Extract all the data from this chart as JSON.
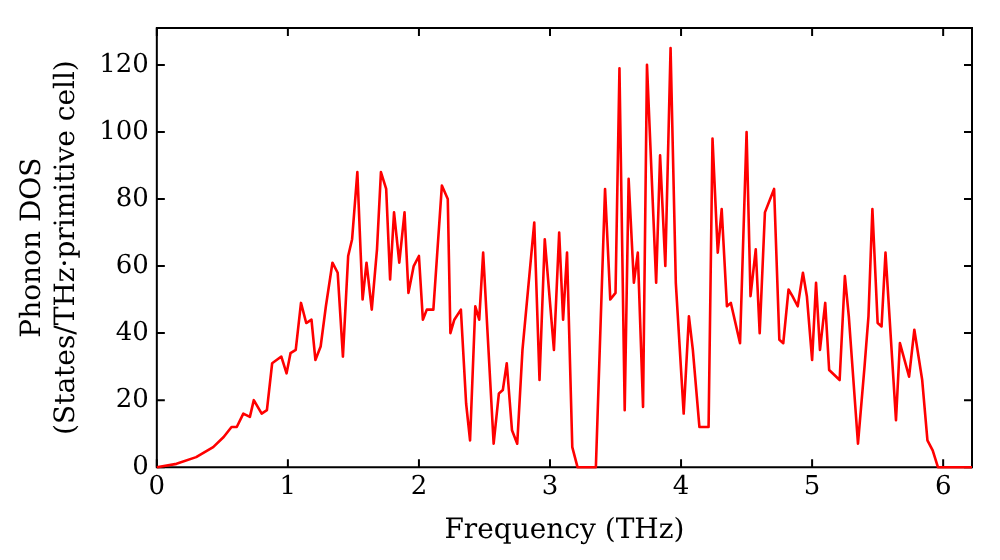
{
  "chart_data": {
    "type": "line",
    "xlabel": "Frequency (THz)",
    "ylabel": "Phonon DOS\n(States/THz·primitive cell)",
    "xlim": [
      0,
      6.22
    ],
    "ylim": [
      0,
      131
    ],
    "xticks": [
      0,
      1,
      2,
      3,
      4,
      5,
      6
    ],
    "yticks": [
      0,
      20,
      40,
      60,
      80,
      100,
      120
    ],
    "grid": false,
    "legend": false,
    "marker": "none",
    "line_style": "solid",
    "series": [
      {
        "color": "#ff0000",
        "x": [
          0,
          0.15,
          0.3,
          0.43,
          0.51,
          0.57,
          0.61,
          0.66,
          0.71,
          0.74,
          0.8,
          0.84,
          0.88,
          0.95,
          0.99,
          1.02,
          1.06,
          1.1,
          1.14,
          1.18,
          1.21,
          1.25,
          1.29,
          1.34,
          1.38,
          1.42,
          1.46,
          1.49,
          1.53,
          1.57,
          1.6,
          1.64,
          1.68,
          1.71,
          1.75,
          1.78,
          1.81,
          1.85,
          1.89,
          1.92,
          1.96,
          2.0,
          2.03,
          2.06,
          2.11,
          2.175,
          2.22,
          2.24,
          2.27,
          2.32,
          2.36,
          2.39,
          2.43,
          2.46,
          2.49,
          2.57,
          2.61,
          2.64,
          2.67,
          2.71,
          2.75,
          2.79,
          2.88,
          2.92,
          2.96,
          3.03,
          3.07,
          3.1,
          3.13,
          3.17,
          3.21,
          3.35,
          3.42,
          3.46,
          3.5,
          3.53,
          3.57,
          3.6,
          3.64,
          3.67,
          3.71,
          3.74,
          3.81,
          3.84,
          3.88,
          3.92,
          3.96,
          4.02,
          4.06,
          4.09,
          4.14,
          4.21,
          4.24,
          4.28,
          4.31,
          4.35,
          4.38,
          4.45,
          4.5,
          4.53,
          4.57,
          4.6,
          4.64,
          4.68,
          4.71,
          4.75,
          4.78,
          4.82,
          4.85,
          4.89,
          4.93,
          4.96,
          5.0,
          5.03,
          5.06,
          5.1,
          5.13,
          5.21,
          5.25,
          5.28,
          5.35,
          5.4,
          5.43,
          5.46,
          5.5,
          5.53,
          5.56,
          5.64,
          5.67,
          5.74,
          5.78,
          5.84,
          5.88,
          5.92,
          5.96,
          6.22
        ],
        "values": [
          0,
          1,
          3,
          6,
          9,
          12,
          12,
          16,
          15,
          20,
          16,
          17,
          31,
          33,
          28,
          34,
          35,
          49,
          43,
          44,
          32,
          36,
          48,
          61,
          58,
          33,
          63,
          68,
          88,
          50,
          61,
          47,
          65,
          88,
          83,
          56,
          76,
          61,
          76,
          52,
          60,
          63,
          44,
          47,
          47,
          84,
          80,
          40,
          44,
          47,
          19,
          8,
          48,
          44,
          64,
          7,
          22,
          23,
          31,
          11,
          7,
          35,
          73,
          26,
          68,
          35,
          70,
          44,
          64,
          6,
          0,
          0,
          83,
          50,
          52,
          119,
          17,
          86,
          55,
          64,
          18,
          120,
          55,
          93,
          60,
          125,
          55,
          16,
          45,
          35,
          12,
          12,
          98,
          64,
          77,
          48,
          49,
          37,
          100,
          51,
          65,
          40,
          76,
          80,
          83,
          38,
          37,
          53,
          51,
          48,
          58,
          51,
          32,
          55,
          35,
          49,
          29,
          26,
          57,
          45,
          7,
          30,
          45,
          77,
          43,
          42,
          64,
          14,
          37,
          27,
          41,
          26,
          8,
          5,
          0,
          0
        ]
      }
    ]
  }
}
